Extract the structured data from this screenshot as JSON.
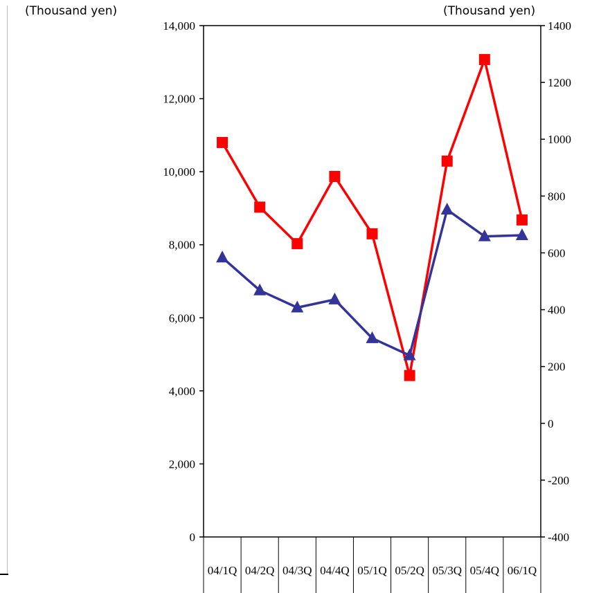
{
  "chart_data": {
    "type": "line",
    "categories": [
      "04/1Q",
      "04/2Q",
      "04/3Q",
      "04/4Q",
      "05/1Q",
      "05/2Q",
      "05/3Q",
      "05/4Q",
      "06/1Q"
    ],
    "left_axis": {
      "unit": "(Thousand yen)",
      "ylim": [
        0,
        14000
      ],
      "ticks": [
        "0",
        "2,000",
        "4,000",
        "6,000",
        "8,000",
        "10,000",
        "12,000",
        "14,000"
      ],
      "tick_values": [
        0,
        2000,
        4000,
        6000,
        8000,
        10000,
        12000,
        14000
      ]
    },
    "right_axis": {
      "unit": "(Thousand yen)",
      "ylim": [
        -400,
        1400
      ],
      "ticks": [
        "-400",
        "-200",
        "0",
        "200",
        "400",
        "600",
        "800",
        "1000",
        "1200",
        "1400"
      ],
      "tick_values": [
        -400,
        -200,
        0,
        200,
        400,
        600,
        800,
        1000,
        1200,
        1400
      ]
    },
    "series": [
      {
        "axis": "left",
        "marker": "square",
        "color": "#ff0000",
        "values": [
          10800,
          9030,
          8030,
          9870,
          8300,
          4420,
          10290,
          13070,
          8680
        ]
      },
      {
        "axis": "left",
        "marker": "triangle",
        "color": "#333399",
        "values": [
          7650,
          6750,
          6280,
          6500,
          5440,
          4970,
          8960,
          8230,
          8260
        ]
      }
    ],
    "grid": false,
    "legend": "none"
  }
}
